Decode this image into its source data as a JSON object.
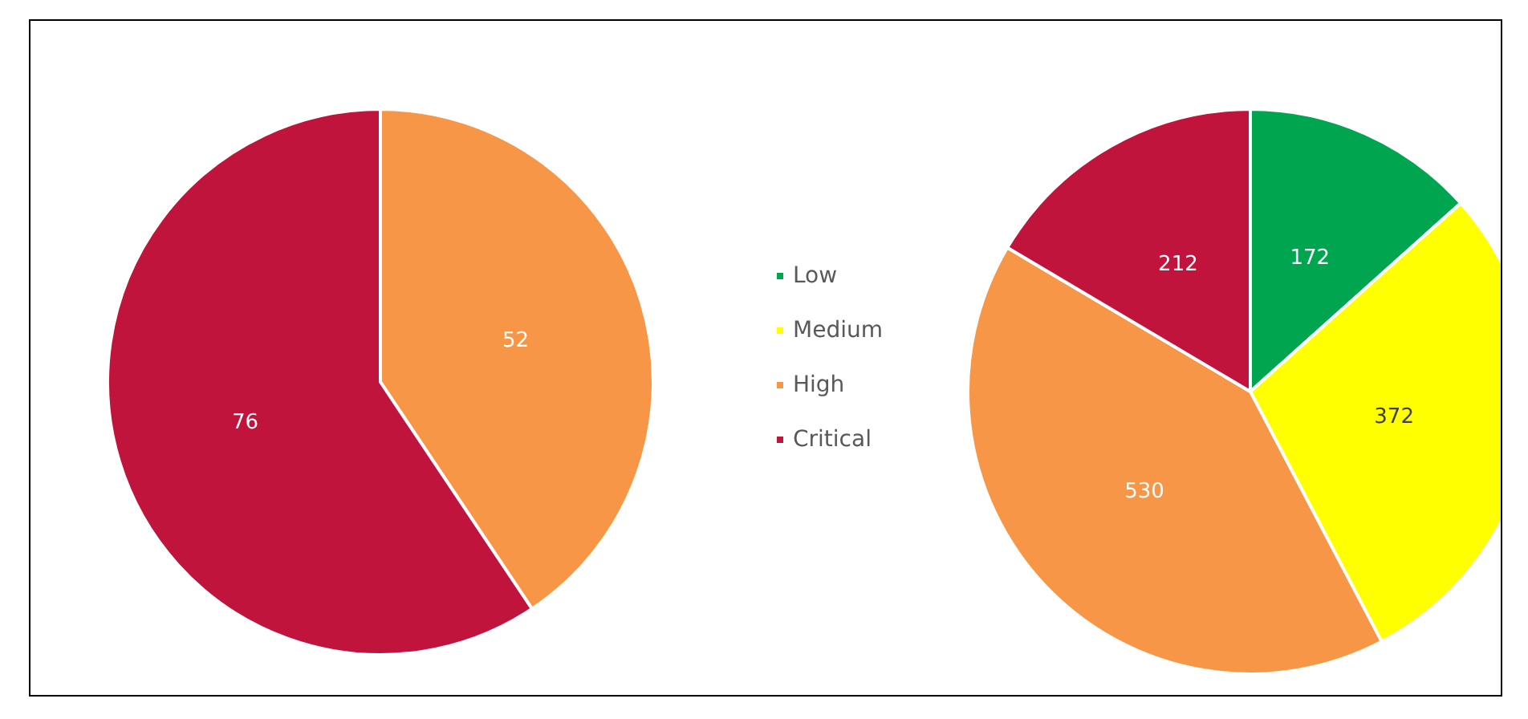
{
  "chart_data": {
    "type": "pie",
    "categories": [
      "Low",
      "Medium",
      "High",
      "Critical"
    ],
    "colors": [
      "#00a550",
      "#ffff00",
      "#f79646",
      "#c0143c"
    ],
    "data_labels": true,
    "legend": "center",
    "series": [
      {
        "values": [
          null,
          null,
          52,
          76
        ]
      },
      {
        "values": [
          172,
          372,
          530,
          212
        ]
      }
    ]
  }
}
